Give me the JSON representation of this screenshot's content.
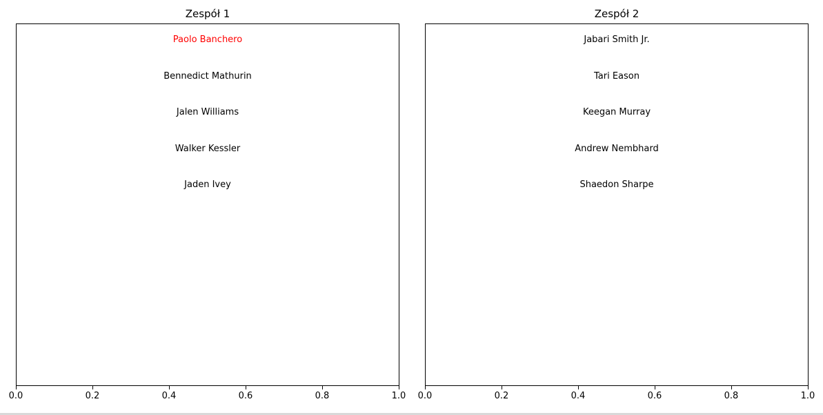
{
  "chart_data": [
    {
      "type": "table",
      "title": "Zespół 1",
      "xlim": [
        0.0,
        1.0
      ],
      "x_ticks": [
        "0.0",
        "0.2",
        "0.4",
        "0.6",
        "0.8",
        "1.0"
      ],
      "players": [
        {
          "name": "Paolo Banchero",
          "color": "#ff0000"
        },
        {
          "name": "Bennedict Mathurin",
          "color": "#000000"
        },
        {
          "name": "Jalen Williams",
          "color": "#000000"
        },
        {
          "name": "Walker Kessler",
          "color": "#000000"
        },
        {
          "name": "Jaden Ivey",
          "color": "#000000"
        }
      ]
    },
    {
      "type": "table",
      "title": "Zespół 2",
      "xlim": [
        0.0,
        1.0
      ],
      "x_ticks": [
        "0.0",
        "0.2",
        "0.4",
        "0.6",
        "0.8",
        "1.0"
      ],
      "players": [
        {
          "name": "Jabari Smith Jr.",
          "color": "#000000"
        },
        {
          "name": "Tari Eason",
          "color": "#000000"
        },
        {
          "name": "Keegan Murray",
          "color": "#000000"
        },
        {
          "name": "Andrew Nembhard",
          "color": "#000000"
        },
        {
          "name": "Shaedon Sharpe",
          "color": "#000000"
        }
      ]
    }
  ]
}
